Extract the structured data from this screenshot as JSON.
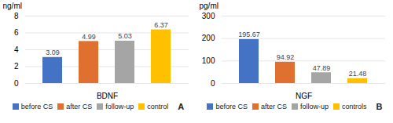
{
  "chart_data": [
    {
      "type": "bar",
      "categories": [
        "before CS",
        "after CS",
        "follow-up",
        "control"
      ],
      "values": [
        3.09,
        4.99,
        5.03,
        6.37
      ],
      "colors": [
        "#4472C4",
        "#E07030",
        "#A5A5A5",
        "#FFC000"
      ],
      "xlabel": "BDNF",
      "ylabel": "ng/ml",
      "ylim": [
        0,
        8
      ],
      "yticks": [
        0,
        2,
        4,
        6,
        8
      ],
      "grid": true,
      "data_labels": true,
      "tick_labels": "y",
      "legend": "bottom",
      "annotations": [
        "A"
      ]
    },
    {
      "type": "bar",
      "categories": [
        "before CS",
        "after CS",
        "follow-up",
        "controls"
      ],
      "values": [
        195.67,
        94.92,
        47.89,
        21.48
      ],
      "colors": [
        "#4472C4",
        "#E07030",
        "#A5A5A5",
        "#FFC000"
      ],
      "xlabel": "NGF",
      "ylabel": "pg/ml",
      "ylim": [
        0,
        300
      ],
      "yticks": [
        0,
        100,
        200,
        300
      ],
      "grid": true,
      "data_labels": true,
      "tick_labels": "y",
      "legend": "bottom",
      "annotations": [
        "B"
      ]
    }
  ]
}
